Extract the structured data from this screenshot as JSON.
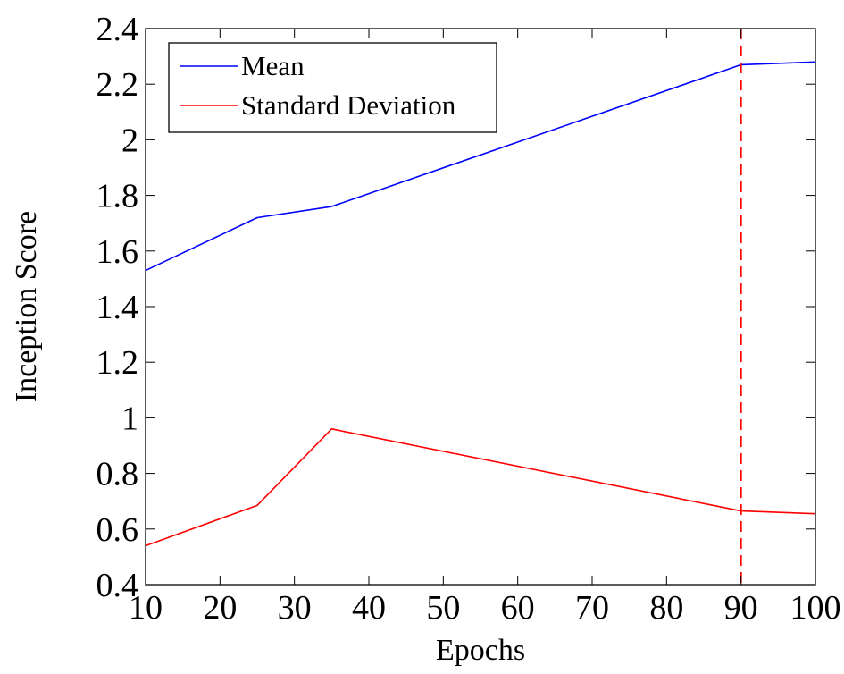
{
  "chart_data": {
    "type": "line",
    "title": "",
    "xlabel": "Epochs",
    "ylabel": "Inception Score",
    "xlim": [
      10,
      100
    ],
    "ylim": [
      0.4,
      2.4
    ],
    "x_ticks": [
      10,
      20,
      30,
      40,
      50,
      60,
      70,
      80,
      90,
      100
    ],
    "x_tick_labels": [
      "10",
      "20",
      "30",
      "40",
      "50",
      "60",
      "70",
      "80",
      "90",
      "100"
    ],
    "y_ticks": [
      0.4,
      0.6,
      0.8,
      1.0,
      1.2,
      1.4,
      1.6,
      1.8,
      2.0,
      2.2,
      2.4
    ],
    "y_tick_labels": [
      "0.4",
      "0.6",
      "0.8",
      "1",
      "1.2",
      "1.4",
      "1.6",
      "1.8",
      "2",
      "2.2",
      "2.4"
    ],
    "grid": false,
    "legend_position": "top-left",
    "series": [
      {
        "name": "Mean",
        "color": "#0000ff",
        "x": [
          10,
          25,
          35,
          90,
          100
        ],
        "y": [
          1.53,
          1.72,
          1.76,
          2.27,
          2.28
        ]
      },
      {
        "name": "Standard Deviation",
        "color": "#ff0000",
        "x": [
          10,
          25,
          35,
          90,
          100
        ],
        "y": [
          0.54,
          0.685,
          0.96,
          0.665,
          0.655
        ]
      }
    ],
    "annotations": [
      {
        "type": "vertical-line",
        "x": 90,
        "style": "dashed",
        "color": "#ff0000"
      }
    ]
  }
}
